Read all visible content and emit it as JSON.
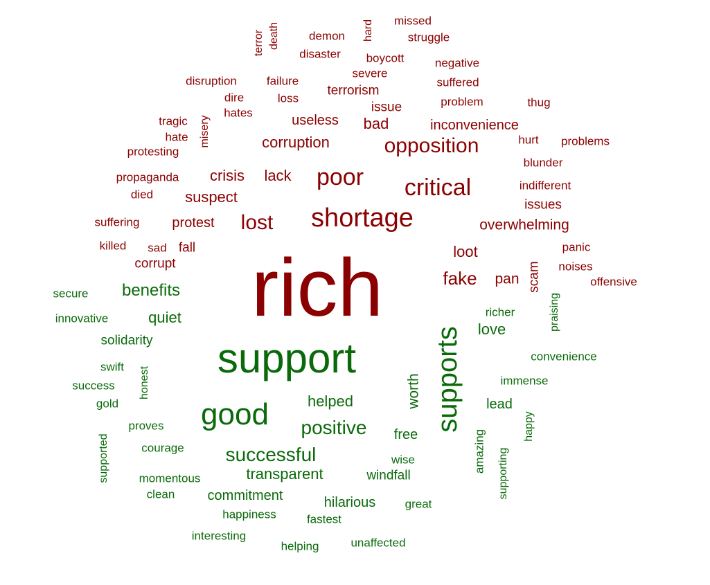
{
  "colors": {
    "negative": "#8b0000",
    "positive": "#0a6a0a"
  },
  "words": {
    "negative": [
      {
        "text": "rich",
        "size": 118
      },
      {
        "text": "terror",
        "size": 16
      },
      {
        "text": "death",
        "size": 16
      },
      {
        "text": "demon",
        "size": 17
      },
      {
        "text": "hard",
        "size": 16
      },
      {
        "text": "missed",
        "size": 17
      },
      {
        "text": "struggle",
        "size": 17
      },
      {
        "text": "disaster",
        "size": 17
      },
      {
        "text": "boycott",
        "size": 17
      },
      {
        "text": "negative",
        "size": 17
      },
      {
        "text": "severe",
        "size": 17
      },
      {
        "text": "disruption",
        "size": 17
      },
      {
        "text": "failure",
        "size": 17
      },
      {
        "text": "terrorism",
        "size": 19
      },
      {
        "text": "suffered",
        "size": 17
      },
      {
        "text": "dire",
        "size": 17
      },
      {
        "text": "loss",
        "size": 17
      },
      {
        "text": "problem",
        "size": 17
      },
      {
        "text": "thug",
        "size": 17
      },
      {
        "text": "issue",
        "size": 19
      },
      {
        "text": "hates",
        "size": 17
      },
      {
        "text": "tragic",
        "size": 17
      },
      {
        "text": "misery",
        "size": 16
      },
      {
        "text": "useless",
        "size": 20
      },
      {
        "text": "bad",
        "size": 22
      },
      {
        "text": "inconvenience",
        "size": 20
      },
      {
        "text": "hate",
        "size": 17
      },
      {
        "text": "corruption",
        "size": 22
      },
      {
        "text": "opposition",
        "size": 30
      },
      {
        "text": "hurt",
        "size": 17
      },
      {
        "text": "problems",
        "size": 17
      },
      {
        "text": "protesting",
        "size": 17
      },
      {
        "text": "blunder",
        "size": 17
      },
      {
        "text": "propaganda",
        "size": 17
      },
      {
        "text": "crisis",
        "size": 22
      },
      {
        "text": "lack",
        "size": 22
      },
      {
        "text": "poor",
        "size": 34
      },
      {
        "text": "critical",
        "size": 34
      },
      {
        "text": "indifferent",
        "size": 17
      },
      {
        "text": "died",
        "size": 17
      },
      {
        "text": "suspect",
        "size": 22
      },
      {
        "text": "issues",
        "size": 19
      },
      {
        "text": "suffering",
        "size": 17
      },
      {
        "text": "protest",
        "size": 20
      },
      {
        "text": "lost",
        "size": 30
      },
      {
        "text": "shortage",
        "size": 38
      },
      {
        "text": "overwhelming",
        "size": 21
      },
      {
        "text": "killed",
        "size": 17
      },
      {
        "text": "sad",
        "size": 17
      },
      {
        "text": "fall",
        "size": 19
      },
      {
        "text": "loot",
        "size": 22
      },
      {
        "text": "panic",
        "size": 17
      },
      {
        "text": "corrupt",
        "size": 19
      },
      {
        "text": "noises",
        "size": 17
      },
      {
        "text": "scam",
        "size": 19
      },
      {
        "text": "fake",
        "size": 26
      },
      {
        "text": "pan",
        "size": 21
      },
      {
        "text": "offensive",
        "size": 17
      }
    ],
    "positive": [
      {
        "text": "secure",
        "size": 17
      },
      {
        "text": "benefits",
        "size": 24
      },
      {
        "text": "innovative",
        "size": 17
      },
      {
        "text": "quiet",
        "size": 22
      },
      {
        "text": "richer",
        "size": 17
      },
      {
        "text": "praising",
        "size": 16
      },
      {
        "text": "love",
        "size": 22
      },
      {
        "text": "solidarity",
        "size": 19
      },
      {
        "text": "supports",
        "size": 40
      },
      {
        "text": "convenience",
        "size": 17
      },
      {
        "text": "swift",
        "size": 17
      },
      {
        "text": "support",
        "size": 60
      },
      {
        "text": "honest",
        "size": 16
      },
      {
        "text": "success",
        "size": 17
      },
      {
        "text": "immense",
        "size": 17
      },
      {
        "text": "worth",
        "size": 21
      },
      {
        "text": "gold",
        "size": 17
      },
      {
        "text": "helped",
        "size": 22
      },
      {
        "text": "lead",
        "size": 20
      },
      {
        "text": "good",
        "size": 44
      },
      {
        "text": "happy",
        "size": 16
      },
      {
        "text": "proves",
        "size": 17
      },
      {
        "text": "positive",
        "size": 28
      },
      {
        "text": "free",
        "size": 20
      },
      {
        "text": "supported",
        "size": 16
      },
      {
        "text": "amazing",
        "size": 17
      },
      {
        "text": "courage",
        "size": 17
      },
      {
        "text": "successful",
        "size": 28
      },
      {
        "text": "wise",
        "size": 17
      },
      {
        "text": "supporting",
        "size": 16
      },
      {
        "text": "momentous",
        "size": 17
      },
      {
        "text": "transparent",
        "size": 22
      },
      {
        "text": "windfall",
        "size": 19
      },
      {
        "text": "clean",
        "size": 17
      },
      {
        "text": "commitment",
        "size": 20
      },
      {
        "text": "hilarious",
        "size": 20
      },
      {
        "text": "great",
        "size": 17
      },
      {
        "text": "happiness",
        "size": 17
      },
      {
        "text": "fastest",
        "size": 17
      },
      {
        "text": "interesting",
        "size": 17
      },
      {
        "text": "helping",
        "size": 17
      },
      {
        "text": "unaffected",
        "size": 17
      }
    ]
  }
}
